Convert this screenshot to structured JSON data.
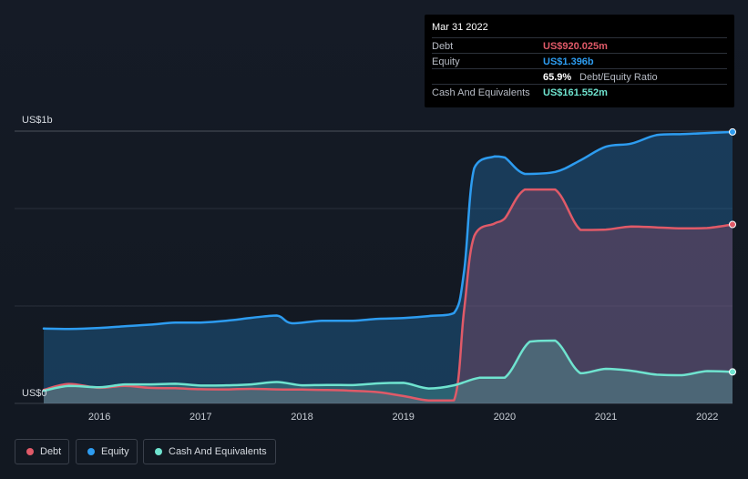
{
  "tooltip": {
    "date": "Mar 31 2022",
    "rows": [
      {
        "label": "Debt",
        "value": "US$920.025m",
        "color": "#e05a68"
      },
      {
        "label": "Equity",
        "value": "US$1.396b",
        "color": "#2d9cf0"
      },
      {
        "label": "",
        "value": "65.9%",
        "suffix": "Debt/Equity Ratio"
      },
      {
        "label": "Cash And Equivalents",
        "value": "US$161.552m",
        "color": "#6fe3cf"
      }
    ]
  },
  "legend": [
    {
      "label": "Debt",
      "color": "#e05a68"
    },
    {
      "label": "Equity",
      "color": "#2d9cf0"
    },
    {
      "label": "Cash And Equivalents",
      "color": "#6fe3cf"
    }
  ],
  "chart_data": {
    "type": "area",
    "title": "",
    "xlabel": "",
    "ylabel": "",
    "y_unit": "US$m",
    "ylim": [
      0,
      1400
    ],
    "xlim": [
      2015.45,
      2022.25
    ],
    "y_tick_labels": [
      {
        "value": 1396,
        "label": "US$1b"
      },
      {
        "value": 0,
        "label": "US$0"
      }
    ],
    "x_ticks": [
      {
        "value": 2016,
        "label": "2016"
      },
      {
        "value": 2017,
        "label": "2017"
      },
      {
        "value": 2018,
        "label": "2018"
      },
      {
        "value": 2019,
        "label": "2019"
      },
      {
        "value": 2020,
        "label": "2020"
      },
      {
        "value": 2021,
        "label": "2021"
      },
      {
        "value": 2022,
        "label": "2022"
      }
    ],
    "grid": "horizontal",
    "legend_position": "bottom-left",
    "series": [
      {
        "name": "Equity",
        "color": "#2d9cf0",
        "points": [
          [
            2015.45,
            385
          ],
          [
            2015.7,
            383
          ],
          [
            2016.0,
            388
          ],
          [
            2016.25,
            397
          ],
          [
            2016.5,
            405
          ],
          [
            2016.75,
            416
          ],
          [
            2017.0,
            416
          ],
          [
            2017.25,
            425
          ],
          [
            2017.5,
            440
          ],
          [
            2017.75,
            452
          ],
          [
            2017.9,
            412
          ],
          [
            2018.2,
            425
          ],
          [
            2018.5,
            425
          ],
          [
            2018.75,
            435
          ],
          [
            2019.0,
            439
          ],
          [
            2019.25,
            449
          ],
          [
            2019.5,
            465
          ],
          [
            2019.6,
            680
          ],
          [
            2019.7,
            1210
          ],
          [
            2019.9,
            1270
          ],
          [
            2020.0,
            1265
          ],
          [
            2020.2,
            1180
          ],
          [
            2020.5,
            1190
          ],
          [
            2020.75,
            1250
          ],
          [
            2021.0,
            1320
          ],
          [
            2021.25,
            1336
          ],
          [
            2021.5,
            1380
          ],
          [
            2021.75,
            1385
          ],
          [
            2022.0,
            1390
          ],
          [
            2022.25,
            1396
          ]
        ]
      },
      {
        "name": "Debt",
        "color": "#e05a68",
        "points": [
          [
            2015.45,
            70
          ],
          [
            2015.7,
            100
          ],
          [
            2016.0,
            80
          ],
          [
            2016.25,
            90
          ],
          [
            2016.5,
            80
          ],
          [
            2016.75,
            78
          ],
          [
            2017.0,
            73
          ],
          [
            2017.25,
            72
          ],
          [
            2017.5,
            75
          ],
          [
            2017.75,
            72
          ],
          [
            2018.0,
            71
          ],
          [
            2018.25,
            69
          ],
          [
            2018.5,
            65
          ],
          [
            2018.75,
            58
          ],
          [
            2019.0,
            38
          ],
          [
            2019.25,
            15
          ],
          [
            2019.5,
            16
          ],
          [
            2019.6,
            480
          ],
          [
            2019.7,
            860
          ],
          [
            2019.9,
            925
          ],
          [
            2020.0,
            950
          ],
          [
            2020.2,
            1100
          ],
          [
            2020.5,
            1100
          ],
          [
            2020.75,
            892
          ],
          [
            2021.0,
            894
          ],
          [
            2021.25,
            910
          ],
          [
            2021.5,
            905
          ],
          [
            2021.75,
            900
          ],
          [
            2022.0,
            902
          ],
          [
            2022.25,
            920
          ]
        ]
      },
      {
        "name": "Cash And Equivalents",
        "color": "#6fe3cf",
        "points": [
          [
            2015.45,
            65
          ],
          [
            2015.7,
            90
          ],
          [
            2016.0,
            83
          ],
          [
            2016.25,
            98
          ],
          [
            2016.5,
            98
          ],
          [
            2016.75,
            101
          ],
          [
            2017.0,
            92
          ],
          [
            2017.25,
            93
          ],
          [
            2017.5,
            98
          ],
          [
            2017.75,
            110
          ],
          [
            2018.0,
            93
          ],
          [
            2018.25,
            95
          ],
          [
            2018.5,
            94
          ],
          [
            2018.75,
            103
          ],
          [
            2019.0,
            106
          ],
          [
            2019.25,
            77
          ],
          [
            2019.5,
            93
          ],
          [
            2019.75,
            132
          ],
          [
            2020.0,
            132
          ],
          [
            2020.25,
            318
          ],
          [
            2020.5,
            323
          ],
          [
            2020.75,
            155
          ],
          [
            2021.0,
            178
          ],
          [
            2021.25,
            168
          ],
          [
            2021.5,
            148
          ],
          [
            2021.75,
            145
          ],
          [
            2022.0,
            166
          ],
          [
            2022.25,
            162
          ]
        ]
      }
    ]
  }
}
